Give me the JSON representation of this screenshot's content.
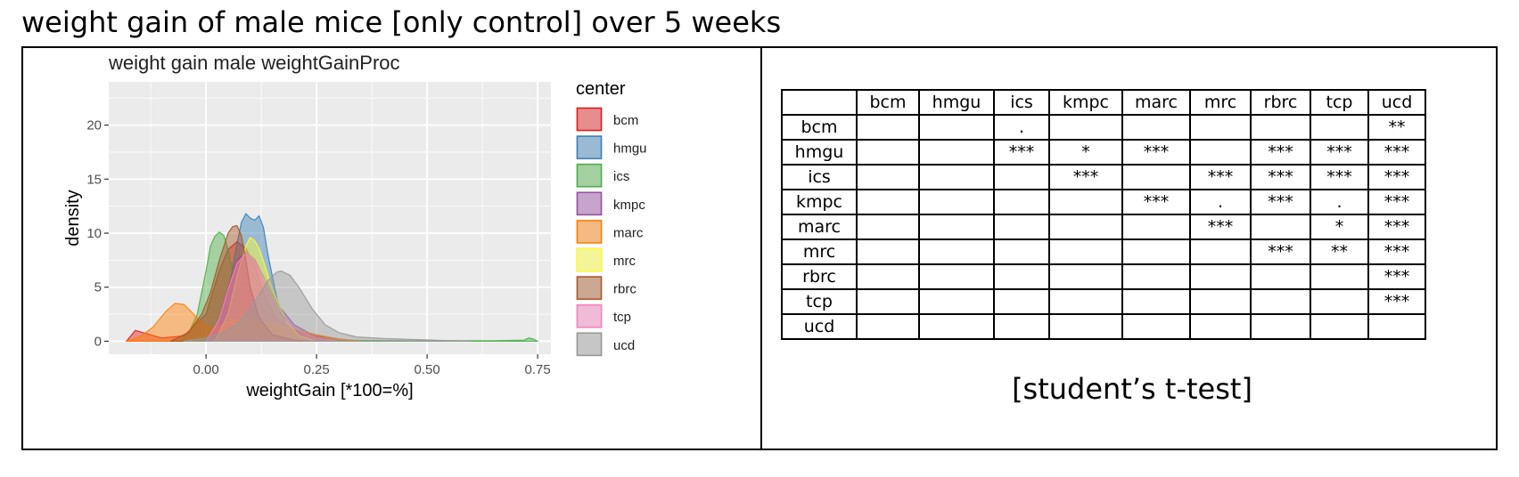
{
  "page_title": "weight gain of male mice [only control] over 5 weeks",
  "table_caption": "[student’s t-test]",
  "table": {
    "columns": [
      "bcm",
      "hmgu",
      "ics",
      "kmpc",
      "marc",
      "mrc",
      "rbrc",
      "tcp",
      "ucd"
    ],
    "rows": [
      {
        "label": "bcm",
        "cells": [
          "",
          "",
          ".",
          "",
          "",
          "",
          "",
          "",
          "**"
        ]
      },
      {
        "label": "hmgu",
        "cells": [
          "",
          "",
          "***",
          "*",
          "***",
          "",
          "***",
          "***",
          "***"
        ]
      },
      {
        "label": "ics",
        "cells": [
          "",
          "",
          "",
          "***",
          "",
          "***",
          "***",
          "***",
          "***"
        ]
      },
      {
        "label": "kmpc",
        "cells": [
          "",
          "",
          "",
          "",
          "***",
          ".",
          "***",
          ".",
          "***"
        ]
      },
      {
        "label": "marc",
        "cells": [
          "",
          "",
          "",
          "",
          "",
          "***",
          "",
          "*",
          "***"
        ]
      },
      {
        "label": "mrc",
        "cells": [
          "",
          "",
          "",
          "",
          "",
          "",
          "***",
          "**",
          "***"
        ]
      },
      {
        "label": "rbrc",
        "cells": [
          "",
          "",
          "",
          "",
          "",
          "",
          "",
          "",
          "***"
        ]
      },
      {
        "label": "tcp",
        "cells": [
          "",
          "",
          "",
          "",
          "",
          "",
          "",
          "",
          "***"
        ]
      },
      {
        "label": "ucd",
        "cells": [
          "",
          "",
          "",
          "",
          "",
          "",
          "",
          "",
          ""
        ]
      }
    ]
  },
  "chart_data": {
    "type": "area",
    "title": "weight gain male weightGainProc",
    "xlabel": "weightGain [*100=%]",
    "ylabel": "density",
    "xlim": [
      -0.22,
      0.78
    ],
    "ylim": [
      -1.2,
      24
    ],
    "xticks": [
      0.0,
      0.25,
      0.5,
      0.75
    ],
    "xtick_labels": [
      "0.00",
      "0.25",
      "0.50",
      "0.75"
    ],
    "yticks": [
      0,
      5,
      10,
      15,
      20
    ],
    "ytick_labels": [
      "0",
      "5",
      "10",
      "15",
      "20"
    ],
    "grid": true,
    "legend_title": "center",
    "legend_position": "right",
    "series": [
      {
        "name": "bcm",
        "color": "#E41A1C",
        "x": [
          -0.18,
          -0.16,
          -0.1,
          -0.05,
          0.0,
          0.03,
          0.05,
          0.07,
          0.09,
          0.11,
          0.13,
          0.16,
          0.2,
          0.25,
          0.3,
          0.35
        ],
        "y": [
          0,
          1.0,
          0.3,
          0.5,
          2.5,
          6.5,
          8.5,
          9.2,
          8.6,
          7.0,
          4.5,
          2.0,
          1.0,
          0.5,
          0.2,
          0
        ]
      },
      {
        "name": "hmgu",
        "color": "#377EB8",
        "x": [
          0.0,
          0.03,
          0.05,
          0.07,
          0.08,
          0.09,
          0.1,
          0.11,
          0.12,
          0.13,
          0.14,
          0.16,
          0.18,
          0.21,
          0.25
        ],
        "y": [
          0,
          1.5,
          4.5,
          9,
          11,
          11.8,
          11.4,
          11.2,
          11.6,
          10.5,
          8,
          4,
          1.5,
          0.3,
          0
        ]
      },
      {
        "name": "ics",
        "color": "#4DAF4A",
        "x": [
          -0.06,
          -0.04,
          -0.02,
          0.0,
          0.01,
          0.02,
          0.03,
          0.04,
          0.05,
          0.06,
          0.07,
          0.09,
          0.11,
          0.14,
          0.18,
          0.25,
          0.45,
          0.65,
          0.72,
          0.73,
          0.74,
          0.75
        ],
        "y": [
          0,
          0.7,
          2.5,
          6.5,
          8.8,
          9.7,
          10.1,
          9.8,
          8.5,
          6.5,
          4.5,
          2.0,
          0.9,
          0.5,
          0.3,
          0.1,
          0.05,
          0.05,
          0.1,
          0.3,
          0.2,
          0
        ]
      },
      {
        "name": "kmpc",
        "color": "#984EA3",
        "x": [
          0.0,
          0.03,
          0.05,
          0.07,
          0.09,
          0.11,
          0.13,
          0.16,
          0.2,
          0.25,
          0.3
        ],
        "y": [
          0,
          2,
          5,
          7.5,
          8.2,
          7.6,
          6,
          3.5,
          1.5,
          0.4,
          0
        ]
      },
      {
        "name": "marc",
        "color": "#FF7F00",
        "x": [
          -0.18,
          -0.15,
          -0.12,
          -0.09,
          -0.07,
          -0.05,
          -0.03,
          -0.01,
          0.01,
          0.03,
          0.06,
          0.1,
          0.15,
          0.2,
          0.25,
          0.3,
          0.35
        ],
        "y": [
          0,
          0.4,
          1.3,
          2.8,
          3.5,
          3.4,
          2.6,
          1.7,
          1.2,
          1.4,
          1.9,
          2.0,
          1.6,
          1.1,
          0.6,
          0.2,
          0
        ]
      },
      {
        "name": "mrc",
        "color": "#FFFF33",
        "x": [
          0.02,
          0.05,
          0.07,
          0.09,
          0.1,
          0.11,
          0.12,
          0.13,
          0.15,
          0.18,
          0.21,
          0.25
        ],
        "y": [
          0,
          2.5,
          6,
          8.8,
          9.6,
          9.3,
          8.6,
          7.4,
          4.8,
          2,
          0.5,
          0
        ]
      },
      {
        "name": "rbrc",
        "color": "#A65628",
        "x": [
          -0.08,
          -0.04,
          -0.01,
          0.01,
          0.03,
          0.05,
          0.06,
          0.07,
          0.08,
          0.09,
          0.1,
          0.12,
          0.15,
          0.2,
          0.25
        ],
        "y": [
          0,
          0.8,
          2.5,
          4.5,
          7.5,
          10,
          10.6,
          10.7,
          9.8,
          7.5,
          5,
          2.2,
          0.6,
          0.1,
          0
        ]
      },
      {
        "name": "tcp",
        "color": "#F781BF",
        "x": [
          0.0,
          0.03,
          0.05,
          0.07,
          0.09,
          0.11,
          0.13,
          0.16,
          0.2,
          0.25,
          0.3
        ],
        "y": [
          0,
          2,
          4.8,
          7.2,
          8.1,
          7.4,
          5.5,
          3,
          1.2,
          0.3,
          0
        ]
      },
      {
        "name": "ucd",
        "color": "#999999",
        "x": [
          -0.05,
          0.0,
          0.05,
          0.08,
          0.1,
          0.12,
          0.14,
          0.16,
          0.17,
          0.19,
          0.21,
          0.24,
          0.27,
          0.3,
          0.34,
          0.4,
          0.48,
          0.55,
          0.6
        ],
        "y": [
          0,
          0.3,
          1.0,
          2.0,
          3.0,
          4.3,
          5.6,
          6.4,
          6.5,
          6.1,
          5,
          3,
          1.5,
          0.8,
          0.4,
          0.25,
          0.15,
          0.05,
          0
        ]
      }
    ]
  }
}
